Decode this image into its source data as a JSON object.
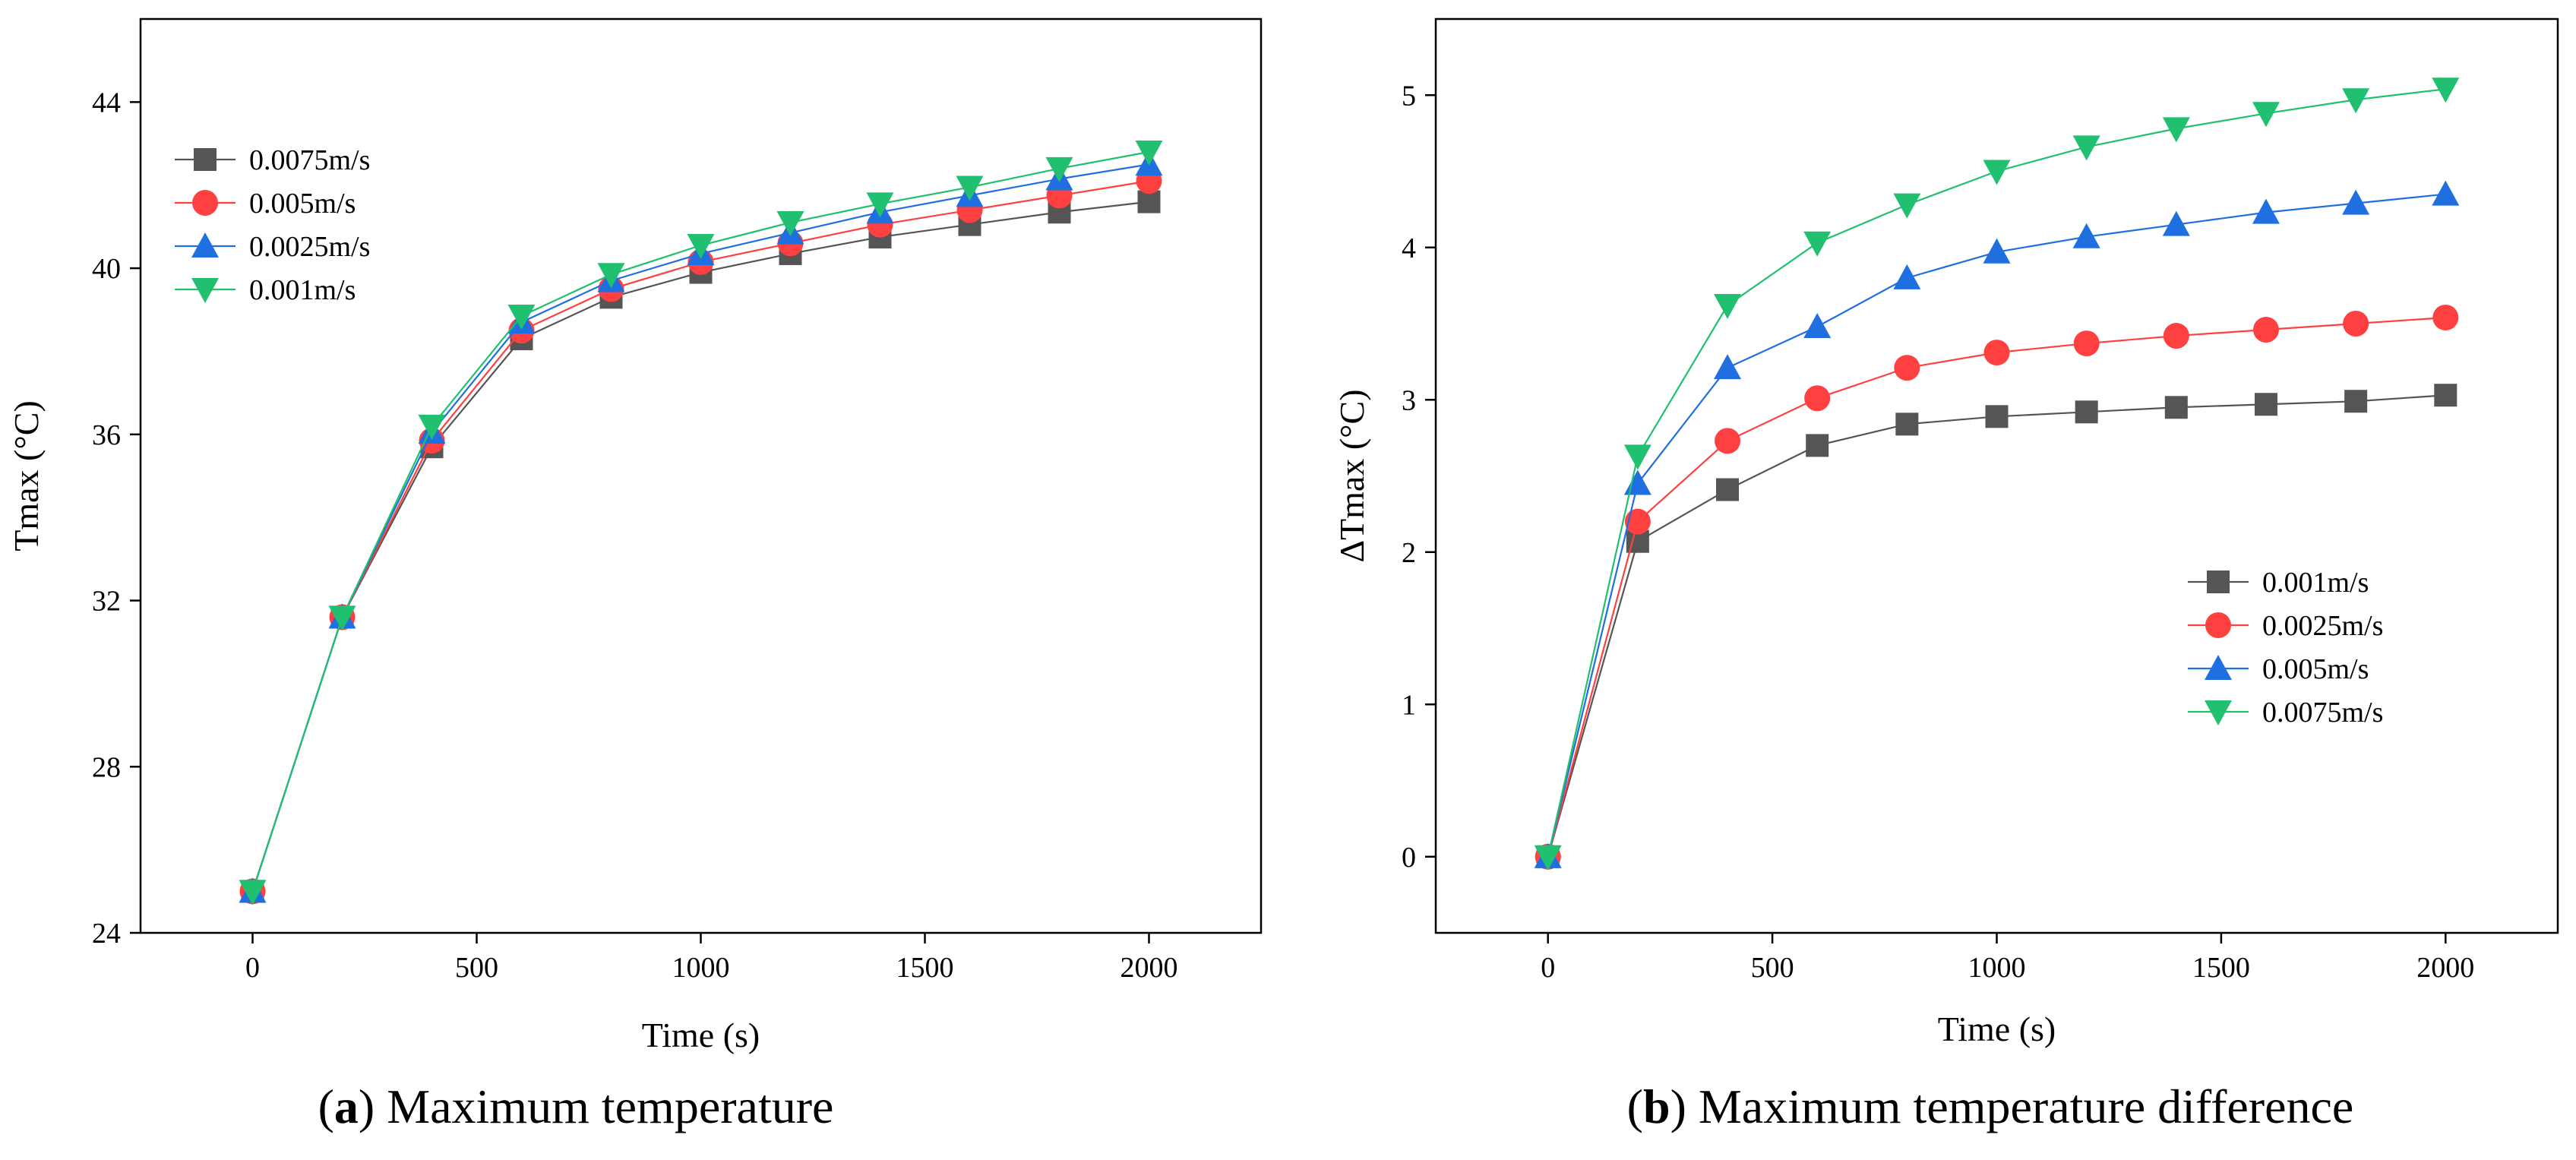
{
  "captions": [
    {
      "letter": "a",
      "text": "Maximum temperature"
    },
    {
      "letter": "b",
      "text": "Maximum temperature difference"
    }
  ],
  "chart_data": [
    {
      "type": "line",
      "xlabel": "Time (s)",
      "ylabel": "Tmax (°C)",
      "xlim": [
        -250,
        2250
      ],
      "ylim": [
        24,
        46
      ],
      "xticks": [
        0,
        500,
        1000,
        1500,
        2000
      ],
      "yticks": [
        24,
        28,
        32,
        36,
        40,
        44
      ],
      "grid": false,
      "legend_position": "top-left",
      "x": [
        0,
        200,
        400,
        600,
        800,
        1000,
        1200,
        1400,
        1600,
        1800,
        2000
      ],
      "series": [
        {
          "name": "0.0075m/s",
          "color": "#555555",
          "marker": "square",
          "values": [
            25.0,
            31.6,
            35.7,
            38.3,
            39.3,
            39.9,
            40.35,
            40.75,
            41.05,
            41.35,
            41.6
          ]
        },
        {
          "name": "0.005m/s",
          "color": "#ff4040",
          "marker": "circle",
          "values": [
            25.0,
            31.6,
            35.85,
            38.5,
            39.5,
            40.15,
            40.6,
            41.05,
            41.4,
            41.75,
            42.1
          ]
        },
        {
          "name": "0.0025m/s",
          "color": "#1f6fe0",
          "marker": "triangle-up",
          "values": [
            25.0,
            31.6,
            36.05,
            38.7,
            39.7,
            40.35,
            40.85,
            41.35,
            41.75,
            42.15,
            42.5
          ]
        },
        {
          "name": "0.001m/s",
          "color": "#20c070",
          "marker": "triangle-down",
          "values": [
            25.0,
            31.6,
            36.2,
            38.85,
            39.85,
            40.55,
            41.1,
            41.55,
            41.95,
            42.4,
            42.8
          ]
        }
      ]
    },
    {
      "type": "line",
      "xlabel": "Time (s)",
      "ylabel": "ΔTmax (°C)",
      "xlim": [
        -250,
        2250
      ],
      "ylim": [
        -0.5,
        5.5
      ],
      "xticks": [
        0,
        500,
        1000,
        1500,
        2000
      ],
      "yticks": [
        0,
        1,
        2,
        3,
        4,
        5
      ],
      "grid": false,
      "legend_position": "bottom-right",
      "x": [
        0,
        200,
        400,
        600,
        800,
        1000,
        1200,
        1400,
        1600,
        1800,
        2000
      ],
      "series": [
        {
          "name": "0.001m/s",
          "color": "#555555",
          "marker": "square",
          "values": [
            0,
            2.07,
            2.41,
            2.7,
            2.84,
            2.89,
            2.92,
            2.95,
            2.97,
            2.99,
            3.03
          ]
        },
        {
          "name": "0.0025m/s",
          "color": "#ff4040",
          "marker": "circle",
          "values": [
            0,
            2.2,
            2.73,
            3.01,
            3.21,
            3.31,
            3.37,
            3.42,
            3.46,
            3.5,
            3.54
          ]
        },
        {
          "name": "0.005m/s",
          "color": "#1f6fe0",
          "marker": "triangle-up",
          "values": [
            0,
            2.45,
            3.21,
            3.48,
            3.8,
            3.97,
            4.07,
            4.15,
            4.23,
            4.29,
            4.35
          ]
        },
        {
          "name": "0.0075m/s",
          "color": "#20c070",
          "marker": "triangle-down",
          "values": [
            0,
            2.63,
            3.62,
            4.03,
            4.28,
            4.5,
            4.66,
            4.78,
            4.88,
            4.97,
            5.04
          ]
        }
      ]
    }
  ]
}
